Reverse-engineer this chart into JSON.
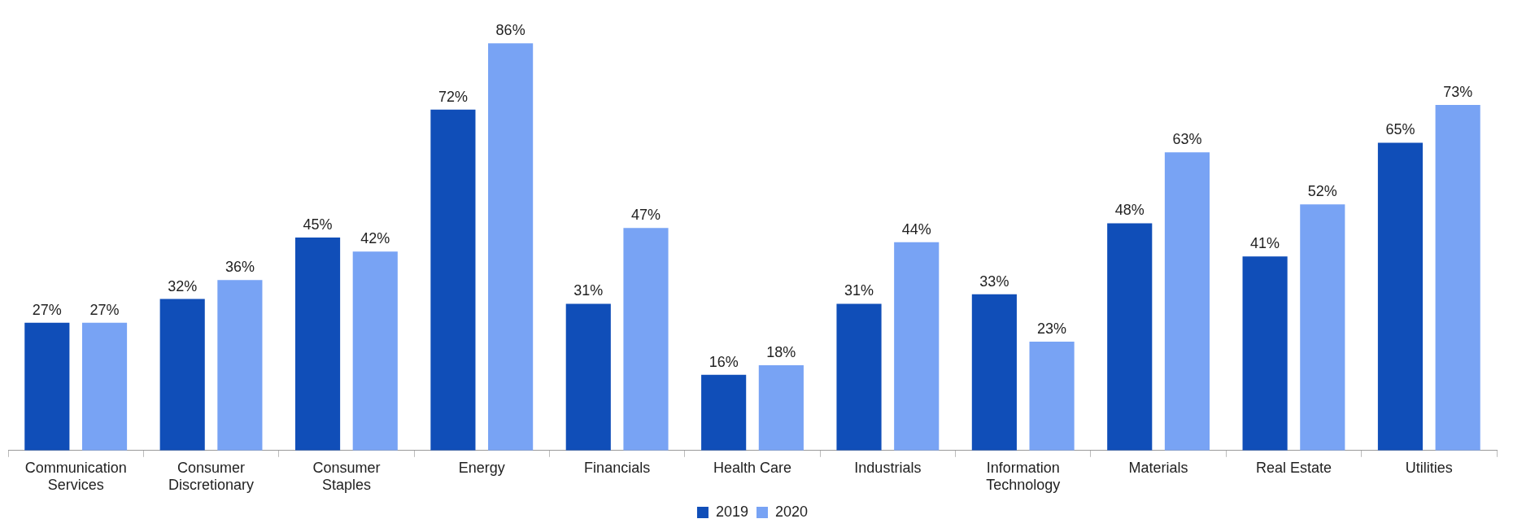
{
  "chart_data": {
    "type": "bar",
    "categories": [
      "Communication Services",
      "Consumer Discretionary",
      "Consumer Staples",
      "Energy",
      "Financials",
      "Health Care",
      "Industrials",
      "Information Technology",
      "Materials",
      "Real Estate",
      "Utilities"
    ],
    "series": [
      {
        "name": "2019",
        "color": "#104eb8",
        "values": [
          27,
          32,
          45,
          72,
          31,
          16,
          31,
          33,
          48,
          41,
          65
        ],
        "value_labels": [
          "27%",
          "32%",
          "45%",
          "72%",
          "31%",
          "16%",
          "31%",
          "33%",
          "48%",
          "41%",
          "65%"
        ]
      },
      {
        "name": "2020",
        "color": "#78a3f4",
        "values": [
          27,
          36,
          42,
          86,
          47,
          18,
          44,
          23,
          63,
          52,
          73
        ],
        "value_labels": [
          "27%",
          "36%",
          "42%",
          "86%",
          "47%",
          "18%",
          "44%",
          "23%",
          "63%",
          "52%",
          "73%"
        ]
      }
    ],
    "legend": "bottom"
  }
}
